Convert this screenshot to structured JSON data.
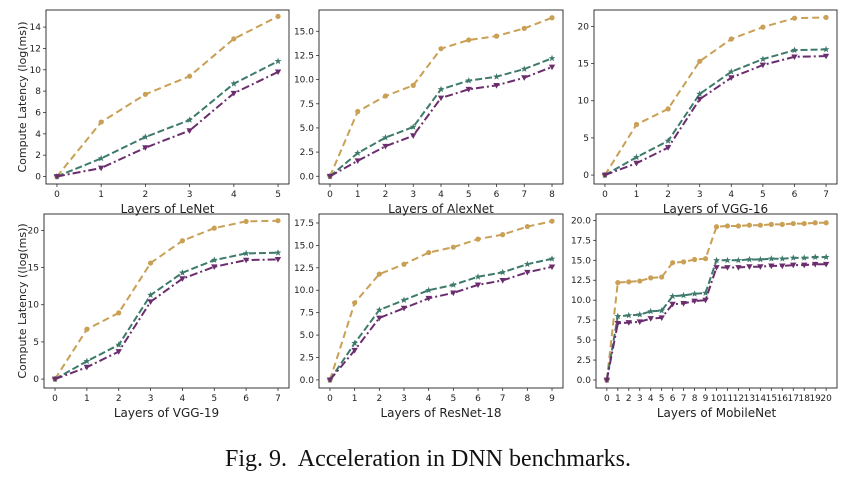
{
  "caption": {
    "label": "Fig. 9.",
    "text": "Acceleration in DNN benchmarks."
  },
  "colors": {
    "series_a": "#c9a055",
    "series_b": "#3e7a6c",
    "series_c": "#6b2d6e"
  },
  "chart_data": [
    {
      "type": "line",
      "xlabel": "Layers of LeNet",
      "ylabel": "Compute Latency (log(ms))",
      "x": [
        0,
        1,
        2,
        3,
        4,
        5
      ],
      "ylim": [
        -0.7,
        15.6
      ],
      "yticks": [
        0,
        2,
        4,
        6,
        8,
        10,
        12,
        14
      ],
      "ytick_labels": [
        "0",
        "2",
        "4",
        "6",
        "8",
        "10",
        "12",
        "14"
      ],
      "series": [
        {
          "name": "series-a",
          "values": [
            0,
            5.1,
            7.7,
            9.4,
            12.9,
            15.0
          ]
        },
        {
          "name": "series-b",
          "values": [
            0,
            1.7,
            3.7,
            5.3,
            8.7,
            10.8
          ]
        },
        {
          "name": "series-c",
          "values": [
            0,
            0.8,
            2.7,
            4.3,
            7.8,
            9.8
          ]
        }
      ]
    },
    {
      "type": "line",
      "xlabel": "Layers of AlexNet",
      "ylabel": "",
      "x": [
        0,
        1,
        2,
        3,
        4,
        5,
        6,
        7,
        8
      ],
      "ylim": [
        -0.8,
        17.2
      ],
      "yticks": [
        0,
        2.5,
        5,
        7.5,
        10,
        12.5,
        15
      ],
      "ytick_labels": [
        "0.0",
        "2.5",
        "5.0",
        "7.5",
        "10.0",
        "12.5",
        "15.0"
      ],
      "series": [
        {
          "name": "series-a",
          "values": [
            0,
            6.7,
            8.3,
            9.4,
            13.2,
            14.1,
            14.5,
            15.3,
            16.4
          ]
        },
        {
          "name": "series-b",
          "values": [
            0,
            2.4,
            4.0,
            5.1,
            9.0,
            9.9,
            10.3,
            11.1,
            12.2
          ]
        },
        {
          "name": "series-c",
          "values": [
            0,
            1.6,
            3.1,
            4.2,
            8.1,
            9.0,
            9.4,
            10.2,
            11.3
          ]
        }
      ]
    },
    {
      "type": "line",
      "xlabel": "Layers of VGG-16",
      "ylabel": "",
      "x": [
        0,
        1,
        2,
        3,
        4,
        5,
        6,
        7
      ],
      "ylim": [
        -1.2,
        22.2
      ],
      "yticks": [
        0,
        5,
        10,
        15,
        20
      ],
      "ytick_labels": [
        "0",
        "5",
        "10",
        "15",
        "20"
      ],
      "series": [
        {
          "name": "series-a",
          "values": [
            0,
            6.8,
            8.9,
            15.3,
            18.3,
            19.9,
            21.1,
            21.2
          ]
        },
        {
          "name": "series-b",
          "values": [
            0,
            2.4,
            4.6,
            10.9,
            13.9,
            15.6,
            16.8,
            16.9
          ]
        },
        {
          "name": "series-c",
          "values": [
            0,
            1.6,
            3.7,
            10.2,
            13.1,
            14.8,
            15.9,
            16.0
          ]
        }
      ]
    },
    {
      "type": "line",
      "xlabel": "Layers of VGG-19",
      "ylabel": "Compute Latency ((log(ms))",
      "x": [
        0,
        1,
        2,
        3,
        4,
        5,
        6,
        7
      ],
      "ylim": [
        -1.2,
        22.2
      ],
      "yticks": [
        0,
        5,
        10,
        15,
        20
      ],
      "ytick_labels": [
        "0",
        "5",
        "10",
        "15",
        "20"
      ],
      "series": [
        {
          "name": "series-a",
          "values": [
            0,
            6.7,
            8.9,
            15.6,
            18.6,
            20.3,
            21.2,
            21.3
          ]
        },
        {
          "name": "series-b",
          "values": [
            0,
            2.4,
            4.6,
            11.3,
            14.3,
            16.0,
            16.9,
            17.0
          ]
        },
        {
          "name": "series-c",
          "values": [
            0,
            1.6,
            3.7,
            10.4,
            13.5,
            15.1,
            16.0,
            16.1
          ]
        }
      ]
    },
    {
      "type": "line",
      "xlabel": "Layers of ResNet-18",
      "ylabel": "",
      "x": [
        0,
        1,
        2,
        3,
        4,
        5,
        6,
        7,
        8,
        9
      ],
      "ylim": [
        -0.9,
        18.5
      ],
      "yticks": [
        0,
        2.5,
        5,
        7.5,
        10,
        12.5,
        15,
        17.5
      ],
      "ytick_labels": [
        "0.0",
        "2.5",
        "5.0",
        "7.5",
        "10.0",
        "12.5",
        "15.0",
        "17.5"
      ],
      "series": [
        {
          "name": "series-a",
          "values": [
            0,
            8.6,
            11.8,
            12.9,
            14.2,
            14.8,
            15.7,
            16.2,
            17.1,
            17.7
          ]
        },
        {
          "name": "series-b",
          "values": [
            0,
            4.1,
            7.8,
            8.9,
            10.0,
            10.6,
            11.5,
            12.0,
            12.9,
            13.5
          ]
        },
        {
          "name": "series-c",
          "values": [
            0,
            3.3,
            6.9,
            8.0,
            9.1,
            9.7,
            10.6,
            11.1,
            12.0,
            12.6
          ]
        }
      ]
    },
    {
      "type": "line",
      "xlabel": "Layers of MobileNet",
      "ylabel": "",
      "x": [
        0,
        1,
        2,
        3,
        4,
        5,
        6,
        7,
        8,
        9,
        10,
        11,
        12,
        13,
        14,
        15,
        16,
        17,
        18,
        19,
        20
      ],
      "ylim": [
        -1.0,
        20.8
      ],
      "yticks": [
        0,
        2.5,
        5,
        7.5,
        10,
        12.5,
        15,
        17.5,
        20
      ],
      "ytick_labels": [
        "0.0",
        "2.5",
        "5.0",
        "7.5",
        "10.0",
        "12.5",
        "15.0",
        "17.5",
        "20.0"
      ],
      "series": [
        {
          "name": "series-a",
          "values": [
            0,
            12.2,
            12.3,
            12.4,
            12.8,
            12.9,
            14.7,
            14.8,
            15.1,
            15.2,
            19.2,
            19.3,
            19.3,
            19.4,
            19.4,
            19.5,
            19.5,
            19.6,
            19.6,
            19.7,
            19.7
          ]
        },
        {
          "name": "series-b",
          "values": [
            0,
            8.0,
            8.1,
            8.2,
            8.6,
            8.7,
            10.5,
            10.6,
            10.8,
            10.9,
            15.0,
            15.0,
            15.0,
            15.1,
            15.1,
            15.2,
            15.2,
            15.3,
            15.3,
            15.4,
            15.4
          ]
        },
        {
          "name": "series-c",
          "values": [
            0,
            7.1,
            7.2,
            7.3,
            7.7,
            7.8,
            9.5,
            9.6,
            9.9,
            10.0,
            14.1,
            14.1,
            14.1,
            14.2,
            14.2,
            14.3,
            14.3,
            14.4,
            14.4,
            14.5,
            14.5
          ]
        }
      ]
    }
  ]
}
